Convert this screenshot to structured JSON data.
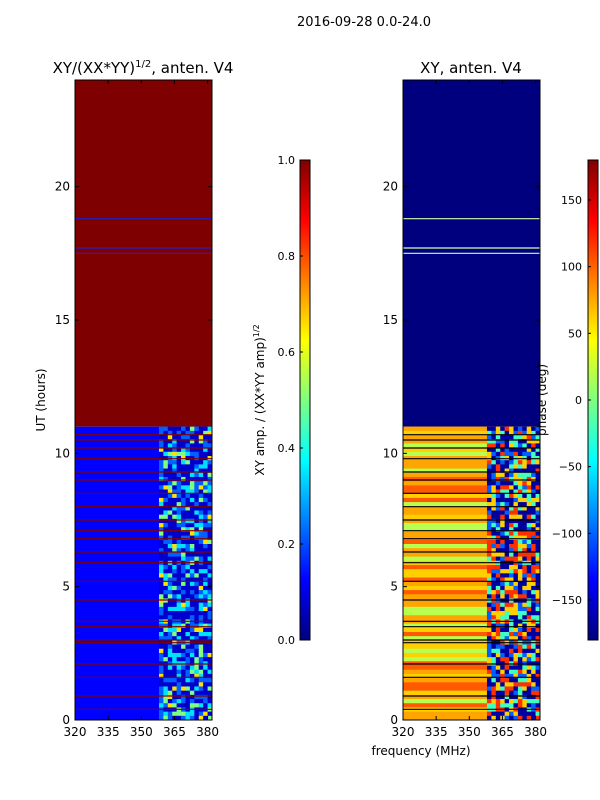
{
  "suptitle": "2016-09-28 0.0-24.0",
  "xlabel_shared": "frequency (MHz)",
  "colors": {
    "jet": [
      "#00007f",
      "#0000ff",
      "#007fff",
      "#00ffff",
      "#7fff7f",
      "#ffff00",
      "#ff7f00",
      "#ff0000",
      "#7f0000"
    ],
    "flag_line": "#800000"
  },
  "chart_data": [
    {
      "type": "heatmap",
      "title_main": "XY/(XX*YY)",
      "title_sup": "1/2",
      "title_tail": ", anten. V4",
      "ylabel": "UT (hours)",
      "xlabel": "",
      "x_range": [
        320,
        382
      ],
      "y_range": [
        0,
        24
      ],
      "x_ticks": [
        320,
        335,
        350,
        365,
        380
      ],
      "y_ticks": [
        0,
        5,
        10,
        15,
        20
      ],
      "colorbar": {
        "label_main": "XY amp. / (XX*YY amp)",
        "label_sup": "1/2",
        "range": [
          0.0,
          1.0
        ],
        "ticks": [
          "0.0",
          "0.2",
          "0.4",
          "0.6",
          "0.8",
          "1.0"
        ]
      },
      "regions": [
        {
          "name": "saturated",
          "ut_from": 11.0,
          "ut_to": 24.0,
          "value": 1.0
        },
        {
          "name": "low-amplitude",
          "ut_from": 0.0,
          "ut_to": 11.0,
          "value": 0.1
        }
      ],
      "flagged_ut_lines": [
        0.4,
        0.9,
        1.6,
        2.1,
        2.9,
        3.0,
        3.5,
        3.7,
        4.5,
        5.2,
        5.9,
        6.3,
        6.8,
        7.1,
        7.5,
        8.0,
        8.5,
        9.0,
        9.3,
        9.8,
        10.2,
        10.5,
        10.7,
        17.5,
        17.7,
        18.8
      ],
      "active_band_mhz": [
        358,
        382
      ]
    },
    {
      "type": "heatmap",
      "title_main": "XY, anten. V4",
      "ylabel": "",
      "xlabel": "frequency (MHz)",
      "x_range": [
        320,
        382
      ],
      "y_range": [
        0,
        24
      ],
      "x_ticks": [
        320,
        335,
        350,
        365,
        380
      ],
      "y_ticks": [
        0,
        5,
        10,
        15,
        20
      ],
      "colorbar": {
        "label_main": "phase (deg)",
        "range": [
          -180,
          180
        ],
        "ticks": [
          "−150",
          "−100",
          "−50",
          "0",
          "50",
          "100",
          "150"
        ],
        "tick_values": [
          -150,
          -100,
          -50,
          0,
          50,
          100,
          150
        ]
      },
      "regions": [
        {
          "name": "constant-phase",
          "ut_from": 11.0,
          "ut_to": 24.0,
          "value": -180
        },
        {
          "name": "variable-phase",
          "ut_from": 0.0,
          "ut_to": 11.0,
          "value": 90
        }
      ],
      "flagged_ut_lines": [
        0.4,
        0.9,
        1.6,
        2.1,
        2.9,
        3.0,
        3.5,
        3.7,
        4.5,
        5.2,
        5.9,
        6.3,
        6.8,
        7.1,
        7.5,
        8.0,
        8.5,
        9.0,
        9.3,
        9.8,
        10.2,
        10.5,
        10.7,
        17.5,
        17.7,
        18.8
      ],
      "active_band_mhz": [
        358,
        382
      ]
    }
  ]
}
